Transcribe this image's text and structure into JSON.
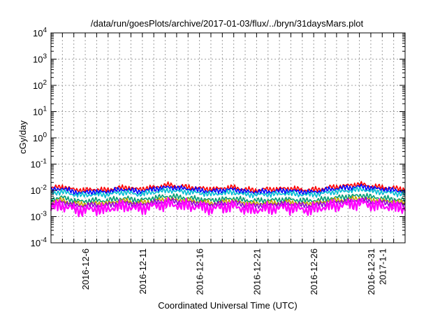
{
  "chart_data": {
    "type": "line",
    "title": "/data/run/goesPlots/archive/2017-01-03/flux/../bryn/31daysMars.plot",
    "xlabel": "Coordinated Universal Time (UTC)",
    "ylabel": "cGy/day",
    "yscale": "log",
    "ylim": [
      0.0001,
      10000
    ],
    "xlim": [
      "2016-12-03",
      "2017-01-03"
    ],
    "grid": true,
    "y_ticks": [
      {
        "base": "10",
        "exp": "4"
      },
      {
        "base": "10",
        "exp": "3"
      },
      {
        "base": "10",
        "exp": "2"
      },
      {
        "base": "10",
        "exp": "1"
      },
      {
        "base": "10",
        "exp": "0"
      },
      {
        "base": "10",
        "exp": "-1"
      },
      {
        "base": "10",
        "exp": "-2"
      },
      {
        "base": "10",
        "exp": "-3"
      },
      {
        "base": "10",
        "exp": "-4"
      }
    ],
    "x_ticks": [
      "2016-12-6",
      "2016-12-11",
      "2016-12-16",
      "2016-12-21",
      "2016-12-26",
      "2016-12-31",
      "2017-1-1"
    ],
    "series": [
      {
        "color": "#ff0000",
        "typical": 0.0115,
        "values": [
          0.012,
          0.014,
          0.011,
          0.01,
          0.011,
          0.01,
          0.012,
          0.013,
          0.011,
          0.012,
          0.014,
          0.016,
          0.014,
          0.013,
          0.012,
          0.011,
          0.012,
          0.013,
          0.011,
          0.01,
          0.011,
          0.011,
          0.012,
          0.011,
          0.01,
          0.011,
          0.013,
          0.014,
          0.016,
          0.017,
          0.014,
          0.013,
          0.012,
          0.011
        ]
      },
      {
        "color": "#0000ff",
        "typical": 0.0095,
        "values": [
          0.01,
          0.012,
          0.009,
          0.008,
          0.009,
          0.0085,
          0.01,
          0.011,
          0.009,
          0.01,
          0.012,
          0.013,
          0.012,
          0.011,
          0.01,
          0.009,
          0.01,
          0.011,
          0.009,
          0.0085,
          0.009,
          0.009,
          0.01,
          0.009,
          0.0085,
          0.009,
          0.011,
          0.012,
          0.013,
          0.014,
          0.012,
          0.011,
          0.01,
          0.009
        ]
      },
      {
        "color": "#00bcd4",
        "typical": 0.0075,
        "values": [
          0.0075,
          0.009,
          0.007,
          0.0065,
          0.007,
          0.0068,
          0.0078,
          0.0085,
          0.007,
          0.0078,
          0.009,
          0.01,
          0.009,
          0.0085,
          0.0078,
          0.007,
          0.0078,
          0.0085,
          0.007,
          0.0068,
          0.007,
          0.0072,
          0.0078,
          0.007,
          0.0068,
          0.0072,
          0.0085,
          0.009,
          0.01,
          0.011,
          0.009,
          0.0085,
          0.0078,
          0.0072
        ]
      },
      {
        "color": "#009e73",
        "typical": 0.0045,
        "values": [
          0.0045,
          0.0055,
          0.0042,
          0.0038,
          0.0042,
          0.004,
          0.0046,
          0.005,
          0.0042,
          0.0046,
          0.0055,
          0.006,
          0.0055,
          0.005,
          0.0046,
          0.0042,
          0.0046,
          0.005,
          0.0042,
          0.004,
          0.0042,
          0.0043,
          0.0046,
          0.0042,
          0.004,
          0.0043,
          0.005,
          0.0055,
          0.006,
          0.0065,
          0.0055,
          0.005,
          0.0046,
          0.0043
        ]
      },
      {
        "color": "#c0a000",
        "typical": 0.0035,
        "values": [
          0.0035,
          0.0042,
          0.0032,
          0.003,
          0.0032,
          0.0031,
          0.0036,
          0.004,
          0.0032,
          0.0036,
          0.0042,
          0.0046,
          0.0042,
          0.004,
          0.0036,
          0.0032,
          0.0036,
          0.004,
          0.0032,
          0.0031,
          0.0032,
          0.0033,
          0.0036,
          0.0032,
          0.0031,
          0.0033,
          0.004,
          0.0042,
          0.0046,
          0.005,
          0.0042,
          0.004,
          0.0036,
          0.0033
        ]
      },
      {
        "color": "#9400d3",
        "typical": 0.003,
        "values": [
          0.003,
          0.0036,
          0.0028,
          0.0025,
          0.0028,
          0.0026,
          0.0031,
          0.0034,
          0.0028,
          0.0031,
          0.0036,
          0.004,
          0.0036,
          0.0034,
          0.0031,
          0.0028,
          0.0031,
          0.0034,
          0.0028,
          0.0026,
          0.0028,
          0.0029,
          0.0031,
          0.0028,
          0.0026,
          0.0029,
          0.0034,
          0.0036,
          0.004,
          0.0043,
          0.0036,
          0.0034,
          0.0031,
          0.0029
        ]
      },
      {
        "color": "#ff00ff",
        "typical": 0.0022,
        "values": [
          0.0022,
          0.0027,
          0.002,
          0.0017,
          0.002,
          0.0018,
          0.0023,
          0.0025,
          0.002,
          0.0023,
          0.0027,
          0.003,
          0.0027,
          0.0025,
          0.0023,
          0.002,
          0.0023,
          0.0025,
          0.002,
          0.0018,
          0.002,
          0.0021,
          0.0023,
          0.002,
          0.0018,
          0.0021,
          0.0025,
          0.0027,
          0.003,
          0.0033,
          0.0027,
          0.0025,
          0.0023,
          0.0021
        ]
      }
    ]
  }
}
